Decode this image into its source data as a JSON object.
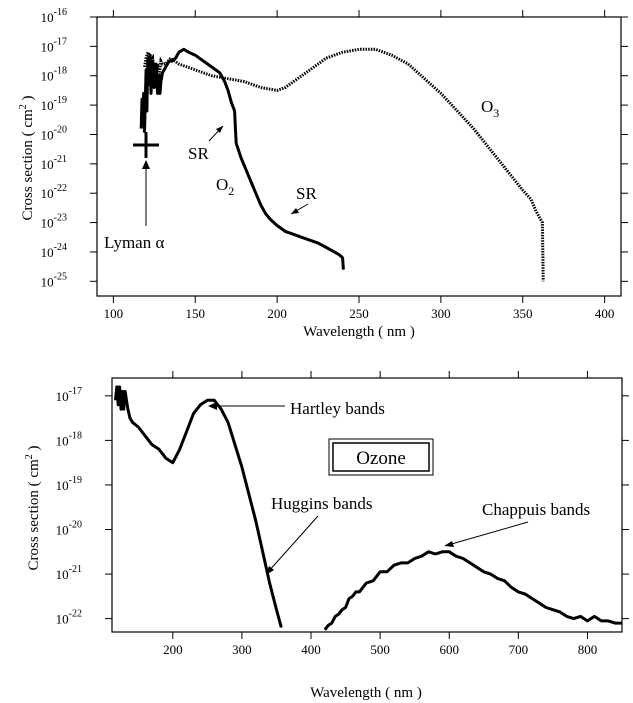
{
  "chart_data": [
    {
      "type": "line",
      "xlabel": "Wavelength ( nm )",
      "ylabel": "Cross section ( cm",
      "ylabel_sup": "2",
      "ylabel_end": " )",
      "xlim": [
        90,
        410
      ],
      "ylim_exp": [
        -25.5,
        -16
      ],
      "y_scale": "log",
      "x_ticks": [
        "100",
        "150",
        "200",
        "250",
        "300",
        "350",
        "400"
      ],
      "y_tick_exponents": [
        "-16",
        "-17",
        "-18",
        "-19",
        "-20",
        "-21",
        "-22",
        "-23",
        "-24",
        "-25"
      ],
      "grid": false,
      "series": [
        {
          "name": "O2",
          "style": "solid-thick",
          "x": [
            117,
            117.5,
            118,
            118.5,
            119,
            120,
            120.5,
            121,
            121.5,
            122,
            122.5,
            123,
            124,
            125,
            126,
            127,
            128,
            128.5,
            129,
            130,
            132,
            134,
            136,
            138,
            140,
            143,
            146,
            150,
            155,
            160,
            165,
            168,
            170,
            172,
            174,
            174.5,
            175,
            178,
            181,
            184,
            187,
            190,
            193,
            196,
            200,
            205,
            210,
            215,
            220,
            225,
            230,
            235,
            238,
            240,
            240.5
          ],
          "log_y": [
            -19.8,
            -18.8,
            -19.7,
            -18.6,
            -19.9,
            -17.8,
            -19.2,
            -17.4,
            -17.5,
            -18.3,
            -17.3,
            -18.6,
            -17.5,
            -18.4,
            -17.6,
            -18.6,
            -18.0,
            -18.6,
            -18.2,
            -17.9,
            -17.7,
            -17.5,
            -17.5,
            -17.4,
            -17.2,
            -17.1,
            -17.2,
            -17.3,
            -17.5,
            -17.7,
            -17.9,
            -18.2,
            -18.5,
            -18.9,
            -19.2,
            -19.8,
            -20.3,
            -20.8,
            -21.2,
            -21.6,
            -22.0,
            -22.4,
            -22.7,
            -22.9,
            -23.1,
            -23.3,
            -23.4,
            -23.5,
            -23.6,
            -23.7,
            -23.85,
            -24.0,
            -24.1,
            -24.2,
            -24.6
          ]
        },
        {
          "name": "O3",
          "style": "dotted",
          "x": [
            119,
            120,
            121,
            122,
            123,
            124,
            125,
            126,
            127,
            128,
            129,
            130,
            132,
            135,
            140,
            145,
            150,
            160,
            170,
            180,
            190,
            200,
            205,
            210,
            220,
            230,
            240,
            250,
            255,
            260,
            270,
            280,
            290,
            300,
            310,
            320,
            330,
            340,
            350,
            355,
            358,
            360,
            362,
            362.5
          ],
          "log_y": [
            -17.7,
            -17.4,
            -17.2,
            -17.3,
            -17.5,
            -17.4,
            -17.9,
            -18.0,
            -17.6,
            -18.0,
            -17.5,
            -17.6,
            -17.6,
            -17.4,
            -17.6,
            -17.7,
            -17.8,
            -18.0,
            -18.1,
            -18.2,
            -18.4,
            -18.5,
            -18.4,
            -18.2,
            -17.8,
            -17.4,
            -17.2,
            -17.1,
            -17.1,
            -17.1,
            -17.3,
            -17.6,
            -18.1,
            -18.6,
            -19.2,
            -19.8,
            -20.5,
            -21.2,
            -21.9,
            -22.2,
            -22.6,
            -22.8,
            -23.0,
            -25.0
          ]
        }
      ],
      "annotations": {
        "o3_label": "O",
        "o3_sub": "3",
        "o2_label": "O",
        "o2_sub": "2",
        "sr1": "SR",
        "sr2": "SR",
        "lyman": "Lyman α"
      }
    },
    {
      "type": "line",
      "xlabel": "Wavelength ( nm )",
      "ylabel": "Cross section ( cm",
      "ylabel_sup": "2",
      "ylabel_end": " )",
      "xlim": [
        112,
        850
      ],
      "ylim_exp": [
        -22.3,
        -16.6
      ],
      "y_scale": "log",
      "x_ticks": [
        "200",
        "300",
        "400",
        "500",
        "600",
        "700",
        "800"
      ],
      "y_tick_exponents": [
        "-17",
        "-18",
        "-19",
        "-20",
        "-21",
        "-22"
      ],
      "grid": false,
      "series": [
        {
          "name": "Ozone",
          "style": "solid-thick",
          "segments": [
            {
              "x": [
                117,
                119,
                121,
                123,
                125,
                127,
                129,
                131,
                133,
                135,
                138,
                142,
                150,
                160,
                170,
                180,
                190,
                200,
                210,
                220,
                230,
                240,
                250,
                255,
                260,
                265,
                270,
                280,
                290,
                300,
                310,
                320,
                330,
                340,
                350,
                357
              ],
              "log_y": [
                -17.1,
                -16.8,
                -17.2,
                -16.8,
                -17.3,
                -16.9,
                -17.3,
                -16.9,
                -17.1,
                -17.3,
                -17.5,
                -17.6,
                -17.7,
                -17.9,
                -18.1,
                -18.2,
                -18.4,
                -18.5,
                -18.2,
                -17.8,
                -17.4,
                -17.2,
                -17.1,
                -17.1,
                -17.1,
                -17.2,
                -17.3,
                -17.6,
                -18.1,
                -18.6,
                -19.2,
                -19.8,
                -20.5,
                -21.2,
                -21.8,
                -22.2
              ]
            },
            {
              "x": [
                420,
                425,
                430,
                435,
                440,
                445,
                450,
                455,
                460,
                465,
                470,
                480,
                490,
                500,
                510,
                520,
                530,
                540,
                550,
                560,
                570,
                580,
                590,
                600,
                610,
                620,
                630,
                640,
                650,
                660,
                670,
                680,
                690,
                700,
                710,
                720,
                730,
                740,
                750,
                760,
                770,
                780,
                790,
                800,
                810,
                820,
                830,
                840,
                850
              ],
              "log_y": [
                -22.25,
                -22.15,
                -22.1,
                -21.95,
                -21.9,
                -21.8,
                -21.75,
                -21.55,
                -21.5,
                -21.4,
                -21.4,
                -21.2,
                -21.15,
                -20.95,
                -20.95,
                -20.8,
                -20.75,
                -20.75,
                -20.65,
                -20.6,
                -20.5,
                -20.55,
                -20.5,
                -20.5,
                -20.6,
                -20.65,
                -20.75,
                -20.85,
                -20.95,
                -21.0,
                -21.1,
                -21.15,
                -21.3,
                -21.4,
                -21.45,
                -21.55,
                -21.65,
                -21.75,
                -21.8,
                -21.85,
                -21.95,
                -22.0,
                -21.95,
                -22.05,
                -21.95,
                -22.05,
                -22.05,
                -22.1,
                -22.1
              ]
            }
          ]
        }
      ],
      "annotations": {
        "hartley": "Hartley bands",
        "ozone_box": "Ozone",
        "huggins": "Huggins bands",
        "chappuis": "Chappuis bands"
      }
    }
  ]
}
